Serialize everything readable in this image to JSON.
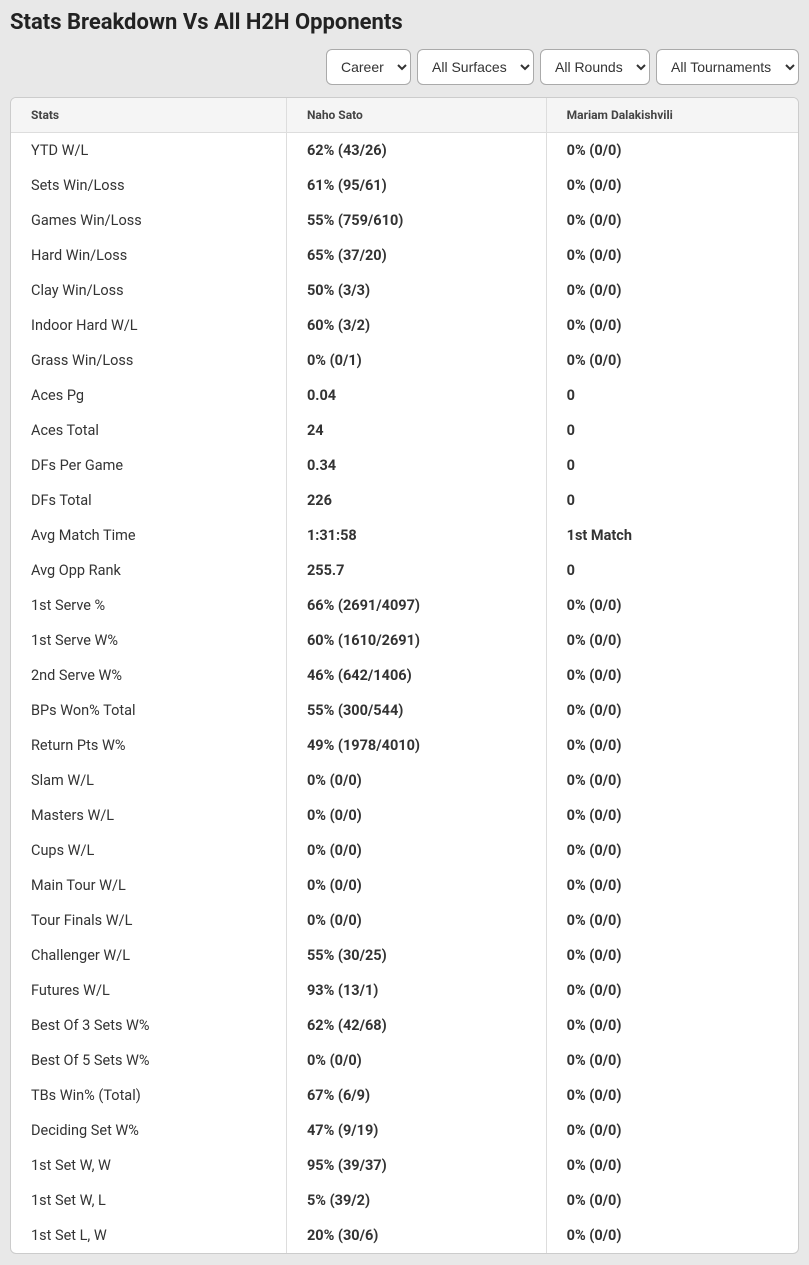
{
  "title": "Stats Breakdown Vs All H2H Opponents",
  "filters": {
    "period": {
      "selected": "Career",
      "options": [
        "Career"
      ]
    },
    "surface": {
      "selected": "All Surfaces",
      "options": [
        "All Surfaces"
      ]
    },
    "round": {
      "selected": "All Rounds",
      "options": [
        "All Rounds"
      ]
    },
    "tournament": {
      "selected": "All Tournaments",
      "options": [
        "All Tournaments"
      ]
    }
  },
  "table": {
    "columns": [
      "Stats",
      "Naho Sato",
      "Mariam Dalakishvili"
    ],
    "rows": [
      {
        "label": "YTD W/L",
        "p1": "62% (43/26)",
        "p2": "0% (0/0)"
      },
      {
        "label": "Sets Win/Loss",
        "p1": "61% (95/61)",
        "p2": "0% (0/0)"
      },
      {
        "label": "Games Win/Loss",
        "p1": "55% (759/610)",
        "p2": "0% (0/0)"
      },
      {
        "label": "Hard Win/Loss",
        "p1": "65% (37/20)",
        "p2": "0% (0/0)"
      },
      {
        "label": "Clay Win/Loss",
        "p1": "50% (3/3)",
        "p2": "0% (0/0)"
      },
      {
        "label": "Indoor Hard W/L",
        "p1": "60% (3/2)",
        "p2": "0% (0/0)"
      },
      {
        "label": "Grass Win/Loss",
        "p1": "0% (0/1)",
        "p2": "0% (0/0)"
      },
      {
        "label": "Aces Pg",
        "p1": "0.04",
        "p2": "0"
      },
      {
        "label": "Aces Total",
        "p1": "24",
        "p2": "0"
      },
      {
        "label": "DFs Per Game",
        "p1": "0.34",
        "p2": "0"
      },
      {
        "label": "DFs Total",
        "p1": "226",
        "p2": "0"
      },
      {
        "label": "Avg Match Time",
        "p1": "1:31:58",
        "p2": "1st Match"
      },
      {
        "label": "Avg Opp Rank",
        "p1": "255.7",
        "p2": "0"
      },
      {
        "label": "1st Serve %",
        "p1": "66% (2691/4097)",
        "p2": "0% (0/0)"
      },
      {
        "label": "1st Serve W%",
        "p1": "60% (1610/2691)",
        "p2": "0% (0/0)"
      },
      {
        "label": "2nd Serve W%",
        "p1": "46% (642/1406)",
        "p2": "0% (0/0)"
      },
      {
        "label": "BPs Won% Total",
        "p1": "55% (300/544)",
        "p2": "0% (0/0)"
      },
      {
        "label": "Return Pts W%",
        "p1": "49% (1978/4010)",
        "p2": "0% (0/0)"
      },
      {
        "label": "Slam W/L",
        "p1": "0% (0/0)",
        "p2": "0% (0/0)"
      },
      {
        "label": "Masters W/L",
        "p1": "0% (0/0)",
        "p2": "0% (0/0)"
      },
      {
        "label": "Cups W/L",
        "p1": "0% (0/0)",
        "p2": "0% (0/0)"
      },
      {
        "label": "Main Tour W/L",
        "p1": "0% (0/0)",
        "p2": "0% (0/0)"
      },
      {
        "label": "Tour Finals W/L",
        "p1": "0% (0/0)",
        "p2": "0% (0/0)"
      },
      {
        "label": "Challenger W/L",
        "p1": "55% (30/25)",
        "p2": "0% (0/0)"
      },
      {
        "label": "Futures W/L",
        "p1": "93% (13/1)",
        "p2": "0% (0/0)"
      },
      {
        "label": "Best Of 3 Sets W%",
        "p1": "62% (42/68)",
        "p2": "0% (0/0)"
      },
      {
        "label": "Best Of 5 Sets W%",
        "p1": "0% (0/0)",
        "p2": "0% (0/0)"
      },
      {
        "label": "TBs Win% (Total)",
        "p1": "67% (6/9)",
        "p2": "0% (0/0)"
      },
      {
        "label": "Deciding Set W%",
        "p1": "47% (9/19)",
        "p2": "0% (0/0)"
      },
      {
        "label": "1st Set W, W",
        "p1": "95% (39/37)",
        "p2": "0% (0/0)"
      },
      {
        "label": "1st Set W, L",
        "p1": "5% (39/2)",
        "p2": "0% (0/0)"
      },
      {
        "label": "1st Set L, W",
        "p1": "20% (30/6)",
        "p2": "0% (0/0)"
      }
    ]
  },
  "styling": {
    "background_color": "#e8e8e8",
    "table_background": "#ffffff",
    "header_background": "#f5f5f5",
    "border_color": "#dddddd",
    "title_fontsize": 22,
    "header_fontsize": 12,
    "cell_fontsize": 14.5
  }
}
